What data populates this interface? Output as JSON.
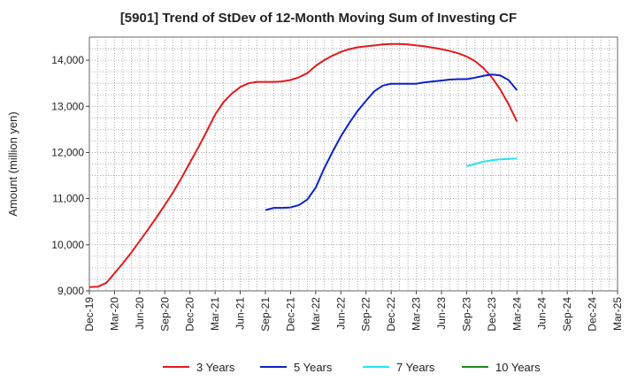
{
  "title": "[5901]  Trend of StDev of 12-Month Moving Sum of Investing CF",
  "chart_data": {
    "type": "line",
    "title": "[5901]  Trend of StDev of 12-Month Moving Sum of Investing CF",
    "ylabel": "Amount (million yen)",
    "xlabel": "",
    "ylim": [
      9000,
      14500
    ],
    "yticks": [
      9000,
      10000,
      11000,
      12000,
      13000,
      14000
    ],
    "ytick_labels": [
      "9,000",
      "10,000",
      "11,000",
      "12,000",
      "13,000",
      "14,000"
    ],
    "xlim": [
      "2019-12",
      "2025-03"
    ],
    "xtick_labels": [
      "Dec-19",
      "Mar-20",
      "Jun-20",
      "Sep-20",
      "Dec-20",
      "Mar-21",
      "Jun-21",
      "Sep-21",
      "Dec-21",
      "Mar-22",
      "Jun-22",
      "Sep-22",
      "Dec-22",
      "Mar-23",
      "Jun-23",
      "Sep-23",
      "Dec-23",
      "Mar-24",
      "Jun-24",
      "Sep-24",
      "Dec-24",
      "Mar-25"
    ],
    "grid": true,
    "legend_position": "bottom",
    "series": [
      {
        "name": "3 Years",
        "color": "#e31a1c",
        "x": [
          "2019-12",
          "2020-01",
          "2020-02",
          "2020-03",
          "2020-04",
          "2020-05",
          "2020-06",
          "2020-07",
          "2020-08",
          "2020-09",
          "2020-10",
          "2020-11",
          "2020-12",
          "2021-01",
          "2021-02",
          "2021-03",
          "2021-04",
          "2021-05",
          "2021-06",
          "2021-07",
          "2021-08",
          "2021-09",
          "2021-10",
          "2021-11",
          "2021-12",
          "2022-01",
          "2022-02",
          "2022-03",
          "2022-04",
          "2022-05",
          "2022-06",
          "2022-07",
          "2022-08",
          "2022-09",
          "2022-10",
          "2022-11",
          "2022-12",
          "2023-01",
          "2023-02",
          "2023-03",
          "2023-04",
          "2023-05",
          "2023-06",
          "2023-07",
          "2023-08",
          "2023-09",
          "2023-10",
          "2023-11",
          "2023-12",
          "2024-01",
          "2024-02",
          "2024-03"
        ],
        "values": [
          9080,
          9090,
          9170,
          9380,
          9600,
          9830,
          10080,
          10330,
          10590,
          10860,
          11140,
          11450,
          11780,
          12110,
          12460,
          12820,
          13090,
          13280,
          13420,
          13500,
          13530,
          13530,
          13530,
          13540,
          13570,
          13630,
          13720,
          13880,
          14000,
          14100,
          14180,
          14240,
          14280,
          14300,
          14320,
          14340,
          14350,
          14350,
          14340,
          14320,
          14300,
          14270,
          14240,
          14200,
          14150,
          14080,
          13980,
          13830,
          13630,
          13370,
          13050,
          12670
        ]
      },
      {
        "name": "5 Years",
        "color": "#0a22c9",
        "x": [
          "2021-09",
          "2021-10",
          "2021-11",
          "2021-12",
          "2022-01",
          "2022-02",
          "2022-03",
          "2022-04",
          "2022-05",
          "2022-06",
          "2022-07",
          "2022-08",
          "2022-09",
          "2022-10",
          "2022-11",
          "2022-12",
          "2023-01",
          "2023-02",
          "2023-03",
          "2023-04",
          "2023-05",
          "2023-06",
          "2023-07",
          "2023-08",
          "2023-09",
          "2023-10",
          "2023-11",
          "2023-12",
          "2024-01",
          "2024-02",
          "2024-03"
        ],
        "values": [
          10750,
          10800,
          10800,
          10810,
          10860,
          10980,
          11240,
          11650,
          12010,
          12350,
          12640,
          12900,
          13120,
          13330,
          13450,
          13490,
          13490,
          13490,
          13490,
          13520,
          13540,
          13560,
          13580,
          13590,
          13590,
          13620,
          13660,
          13690,
          13670,
          13570,
          13350
        ]
      },
      {
        "name": "7 Years",
        "color": "#22e5f0",
        "x": [
          "2023-09",
          "2023-10",
          "2023-11",
          "2023-12",
          "2024-01",
          "2024-02",
          "2024-03"
        ],
        "values": [
          11700,
          11750,
          11800,
          11830,
          11850,
          11860,
          11870
        ]
      },
      {
        "name": "10 Years",
        "color": "#1e8a1e",
        "x": [],
        "values": []
      }
    ]
  }
}
